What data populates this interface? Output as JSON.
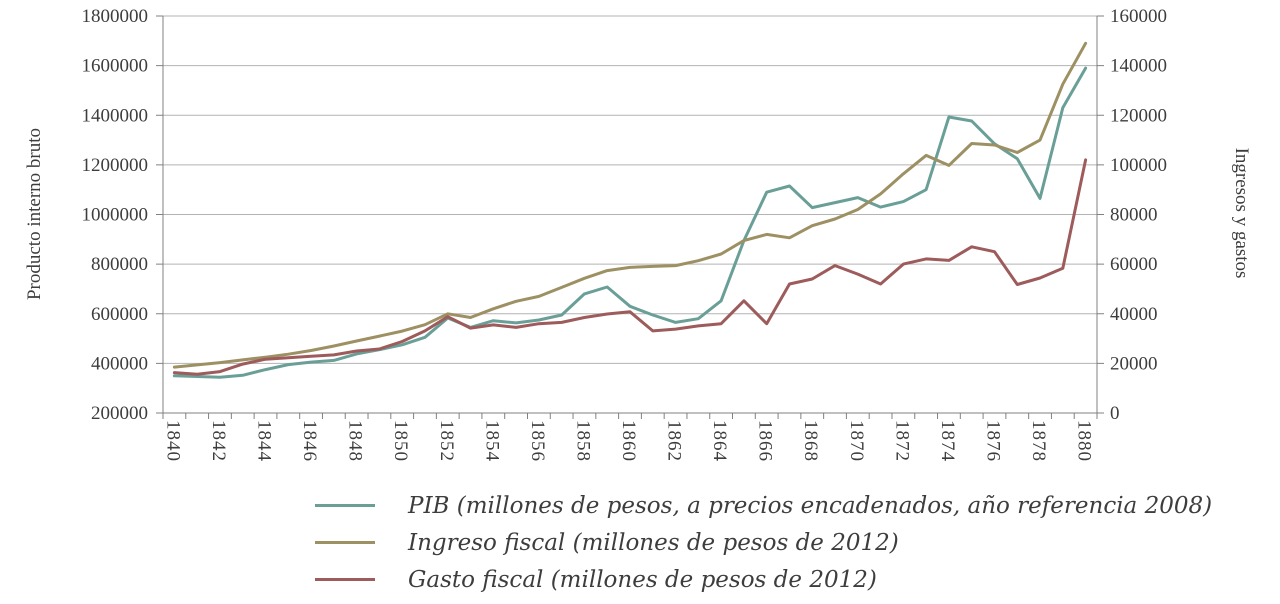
{
  "colors": {
    "text": "#3d3d3d",
    "gridline": "#b3b3b3",
    "axis_line": "#808080",
    "background": "#ffffff",
    "pib": "#6a9f98",
    "ingreso": "#9d9063",
    "gasto": "#9d5b5b"
  },
  "chart_data": {
    "type": "line",
    "title": "",
    "x": [
      1840,
      1841,
      1842,
      1843,
      1844,
      1845,
      1846,
      1847,
      1848,
      1849,
      1850,
      1851,
      1852,
      1853,
      1854,
      1855,
      1856,
      1857,
      1858,
      1859,
      1860,
      1861,
      1862,
      1863,
      1864,
      1865,
      1866,
      1867,
      1868,
      1869,
      1870,
      1871,
      1872,
      1873,
      1874,
      1875,
      1876,
      1877,
      1878,
      1879,
      1880
    ],
    "x_tick_label_every": 2,
    "grid": true,
    "legend_position": "bottom",
    "left_axis": {
      "label": "Producto interno bruto",
      "min": 200000,
      "max": 1800000,
      "step": 200000
    },
    "right_axis": {
      "label": "Ingresos y gastos",
      "min": 0,
      "max": 160000,
      "step": 20000
    },
    "series": [
      {
        "id": "pib",
        "name": "PIB (millones de pesos, a precios encadenados, año referencia 2008)",
        "axis": "left",
        "color": "#6a9f98",
        "values": [
          350000,
          347000,
          344000,
          352000,
          375000,
          395000,
          405000,
          412000,
          438000,
          455000,
          475000,
          505000,
          583000,
          545000,
          572000,
          563000,
          575000,
          595000,
          680000,
          708000,
          630000,
          595000,
          565000,
          580000,
          652000,
          895000,
          1090000,
          1115000,
          1028000,
          1048000,
          1068000,
          1030000,
          1052000,
          1100000,
          1393000,
          1377000,
          1285000,
          1225000,
          1065000,
          1430000,
          1590000
        ]
      },
      {
        "id": "ingreso-fiscal",
        "name": "Ingreso fiscal (millones de pesos de 2012)",
        "axis": "right",
        "color": "#9d9063",
        "values": [
          18500,
          19400,
          20300,
          21400,
          22500,
          23700,
          25200,
          27000,
          29000,
          31000,
          33000,
          35600,
          40000,
          38500,
          42000,
          45000,
          47000,
          50600,
          54300,
          57400,
          58700,
          59100,
          59400,
          61400,
          64100,
          69500,
          72000,
          70600,
          75500,
          78200,
          82000,
          88300,
          96400,
          103800,
          99800,
          108600,
          108000,
          105000,
          110000,
          132500,
          149000
        ]
      },
      {
        "id": "gasto-fiscal",
        "name": "Gasto fiscal (millones de pesos de 2012)",
        "axis": "right",
        "color": "#9d5b5b",
        "values": [
          16300,
          15600,
          16700,
          19700,
          21700,
          22300,
          22900,
          23400,
          25000,
          25800,
          28800,
          33100,
          38800,
          34200,
          35500,
          34500,
          36000,
          36500,
          38500,
          39900,
          40800,
          33100,
          33800,
          35100,
          36000,
          45200,
          36000,
          52000,
          54000,
          59400,
          56000,
          52000,
          60000,
          62100,
          61500,
          67000,
          65000,
          51800,
          54400,
          58300,
          102000
        ]
      }
    ]
  }
}
